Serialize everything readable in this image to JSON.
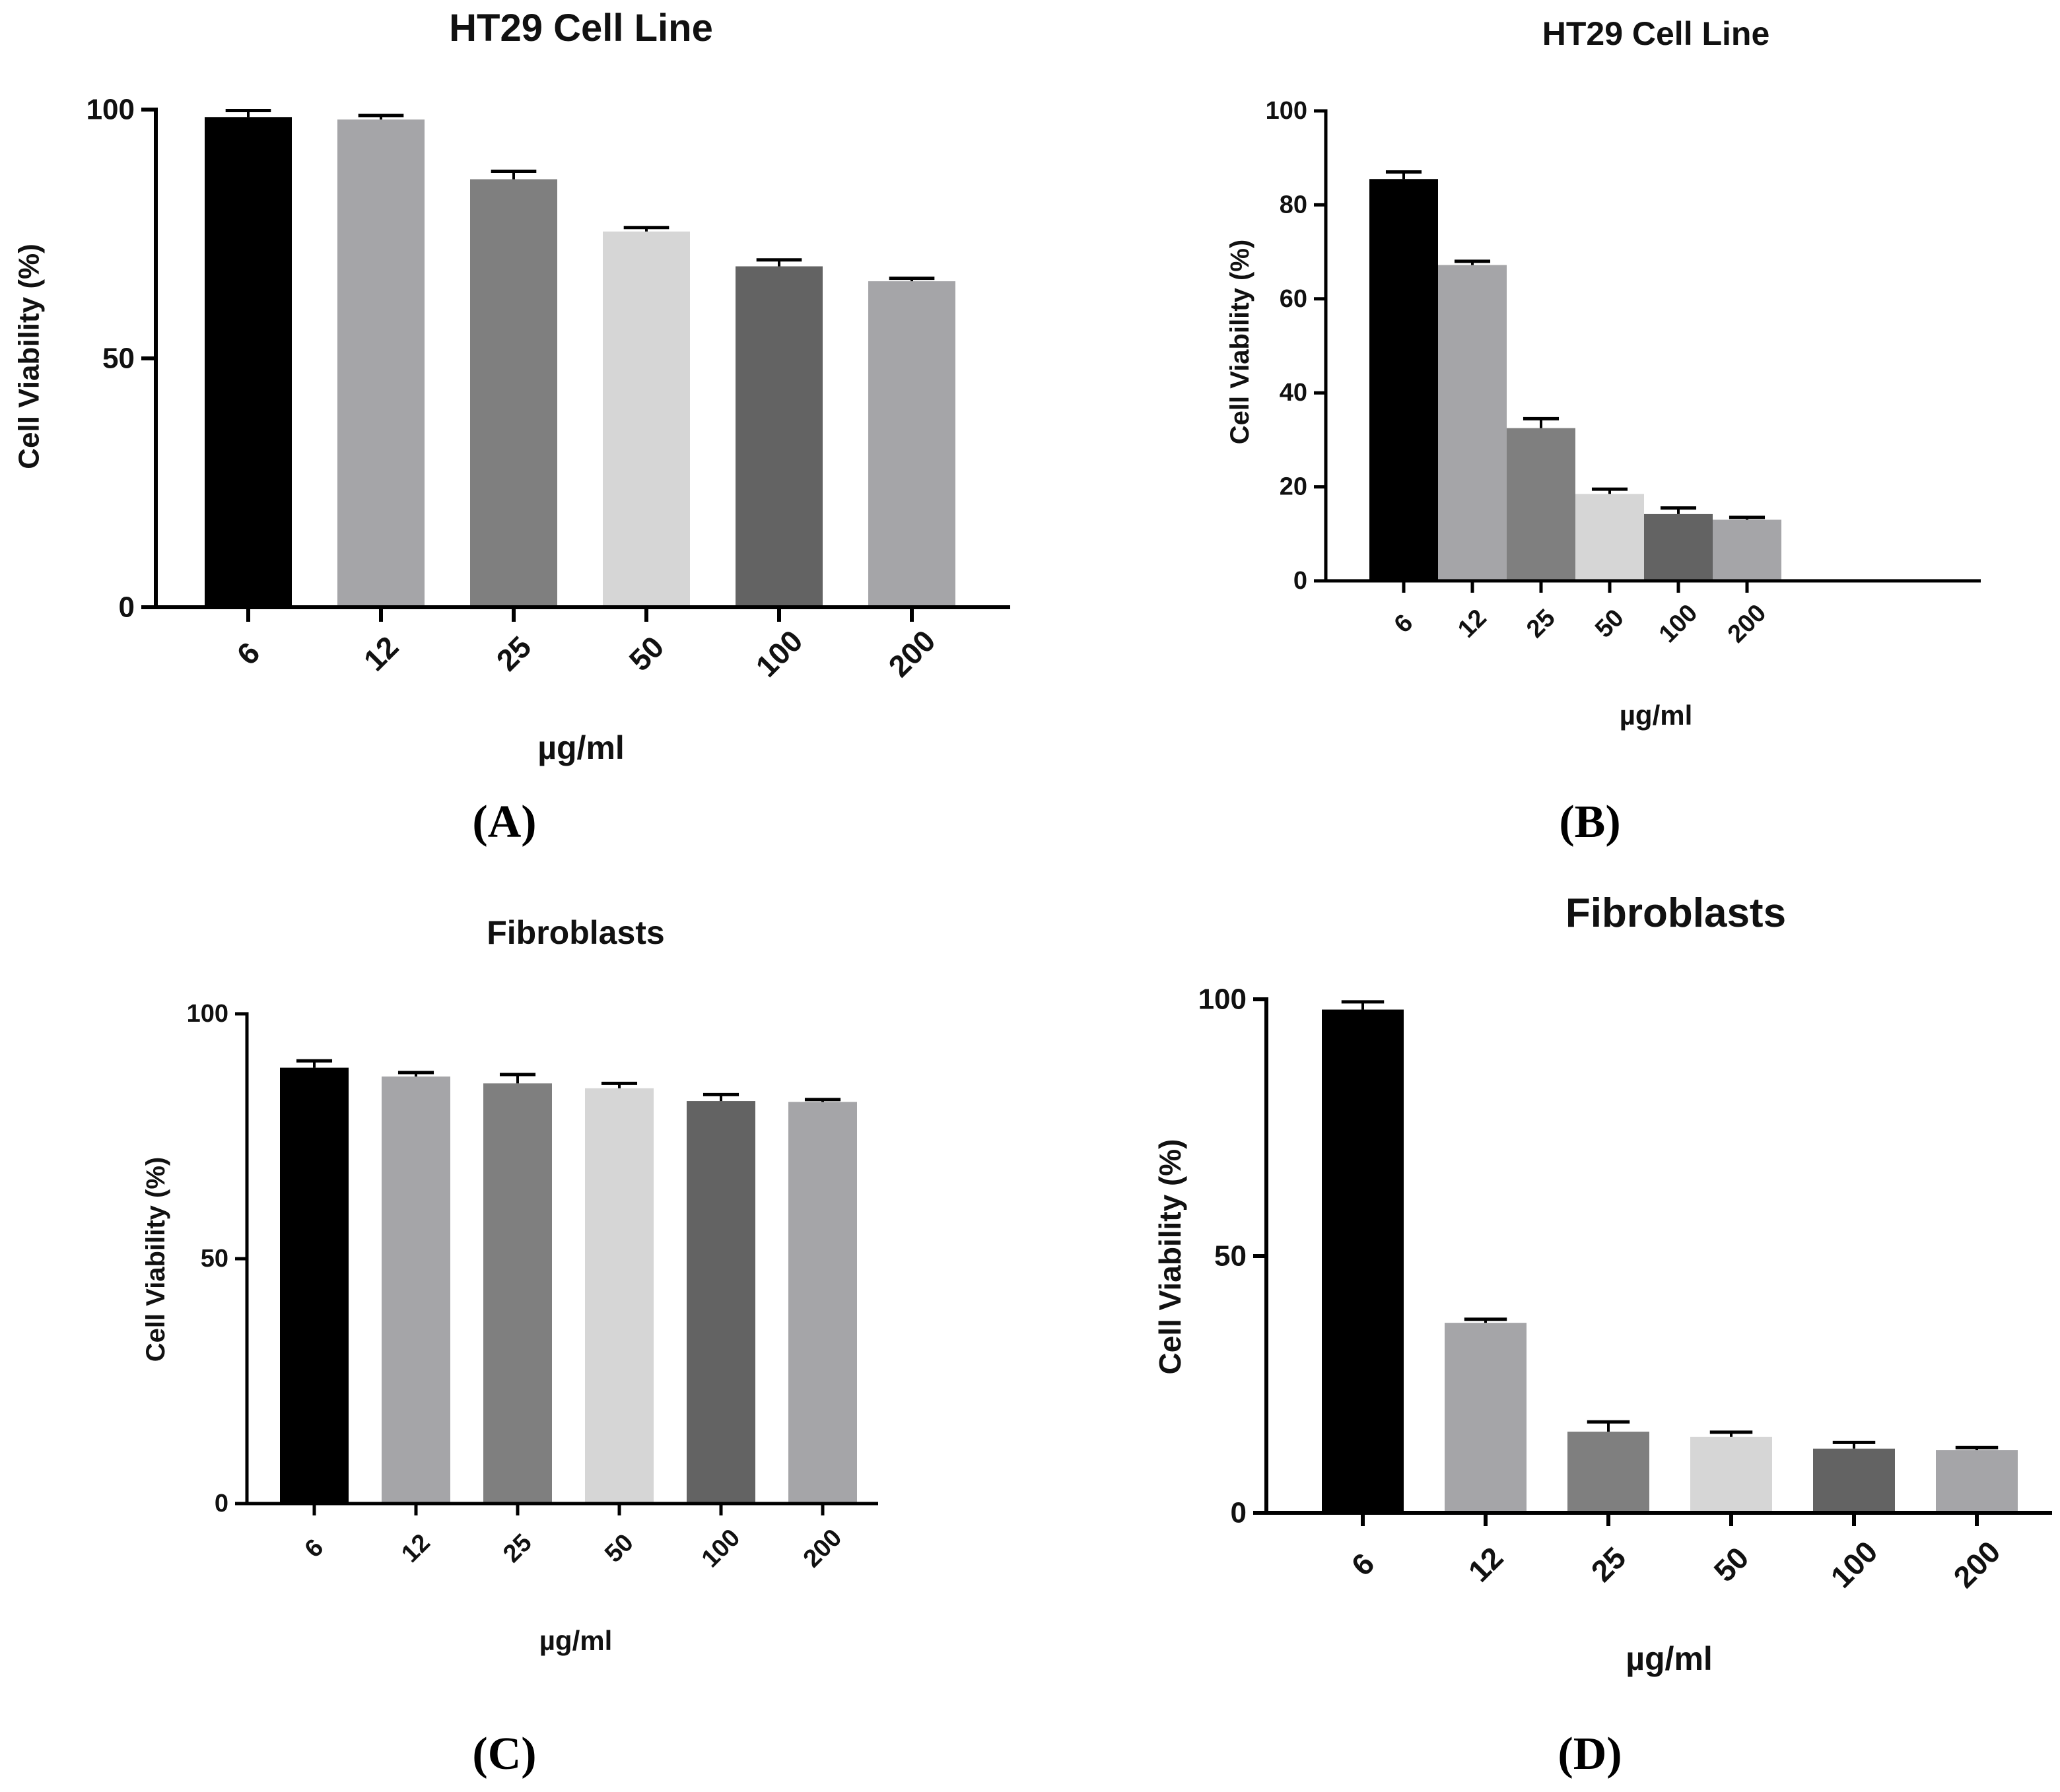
{
  "figure": {
    "panel_labels": [
      "(A)",
      "(B)",
      "(C)",
      "(D)"
    ]
  },
  "chart_data": [
    {
      "type": "bar",
      "panel": "(A)",
      "title": "HT29 Cell Line",
      "xlabel": "µg/ml",
      "ylabel": "Cell Viability (%)",
      "categories": [
        "6",
        "12",
        "25",
        "50",
        "100",
        "200"
      ],
      "values": [
        98.5,
        98,
        86,
        75.5,
        68.5,
        65.5
      ],
      "errors": [
        1.3,
        0.8,
        1.6,
        0.8,
        1.3,
        0.6
      ],
      "colors": [
        "#000000",
        "#a5a5a8",
        "#7f7f7f",
        "#d6d6d6",
        "#636363",
        "#a5a5a8"
      ],
      "ylim": [
        0,
        100
      ],
      "yticks": [
        0,
        50,
        100
      ],
      "grid": false,
      "legend": "none"
    },
    {
      "type": "bar",
      "panel": "(B)",
      "title": "HT29 Cell Line",
      "xlabel": "µg/ml",
      "ylabel": "Cell Viability (%)",
      "categories": [
        "6",
        "12",
        "25",
        "50",
        "100",
        "200"
      ],
      "values": [
        85.5,
        67.2,
        32.5,
        18.5,
        14.2,
        13
      ],
      "errors": [
        1.5,
        0.8,
        2,
        1,
        1.3,
        0.5
      ],
      "colors": [
        "#000000",
        "#a5a5a8",
        "#7f7f7f",
        "#d6d6d6",
        "#636363",
        "#a5a5a8"
      ],
      "ylim": [
        0,
        100
      ],
      "yticks": [
        0,
        20,
        40,
        60,
        80,
        100
      ],
      "grid": false,
      "legend": "none"
    },
    {
      "type": "bar",
      "panel": "(C)",
      "title": "Fibroblasts",
      "xlabel": "µg/ml",
      "ylabel": "Cell Viability (%)",
      "categories": [
        "6",
        "12",
        "25",
        "50",
        "100",
        "200"
      ],
      "values": [
        89,
        87.2,
        85.8,
        84.8,
        82.2,
        82
      ],
      "errors": [
        1.4,
        0.8,
        1.8,
        1,
        1.3,
        0.5
      ],
      "colors": [
        "#000000",
        "#a5a5a8",
        "#7f7f7f",
        "#d6d6d6",
        "#636363",
        "#a5a5a8"
      ],
      "ylim": [
        0,
        100
      ],
      "yticks": [
        0,
        50,
        100
      ],
      "grid": false,
      "legend": "none"
    },
    {
      "type": "bar",
      "panel": "(D)",
      "title": "Fibroblasts",
      "xlabel": "µg/ml",
      "ylabel": "Cell Viability (%)",
      "categories": [
        "6",
        "12",
        "25",
        "50",
        "100",
        "200"
      ],
      "values": [
        98,
        37,
        15.8,
        14.8,
        12.5,
        12.2
      ],
      "errors": [
        1.5,
        0.7,
        1.9,
        0.9,
        1.2,
        0.5
      ],
      "colors": [
        "#000000",
        "#a5a5a8",
        "#7f7f7f",
        "#d6d6d6",
        "#636363",
        "#a5a5a8"
      ],
      "ylim": [
        0,
        100
      ],
      "yticks": [
        0,
        50,
        100
      ],
      "grid": false,
      "legend": "none"
    }
  ]
}
